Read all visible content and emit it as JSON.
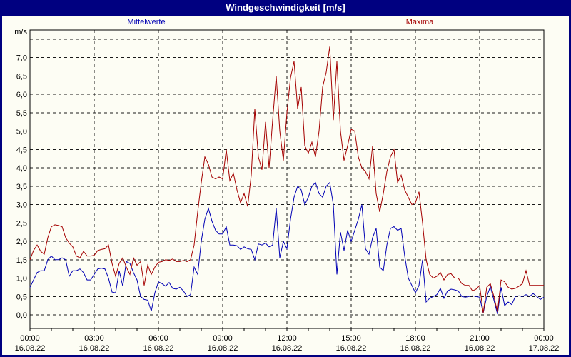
{
  "window": {
    "title": "Windgeschwindigkeit [m/s]"
  },
  "colors": {
    "titlebar_bg": "#000080",
    "titlebar_text": "#ffffff",
    "frame_border": "#000080",
    "surface_bg": "#fdfdf4",
    "grid": "#1a1a1a",
    "axis": "#000000",
    "mean_series": "#0000b4",
    "max_series": "#a40000"
  },
  "chart_data": {
    "type": "line",
    "title": "Windgeschwindigkeit [m/s]",
    "unit_label": "m/s",
    "grid": {
      "dashed": true,
      "color": "#1a1a1a"
    },
    "legend_position": "top",
    "y_axis": {
      "min": 0.0,
      "max": 7.5,
      "grid_step": 0.5,
      "tick_labels": [
        "0,0",
        "0,5",
        "1,0",
        "1,5",
        "2,0",
        "2,5",
        "3,0",
        "3,5",
        "4,0",
        "4,5",
        "5,0",
        "5,5",
        "6,0",
        "6,5",
        "7,0"
      ]
    },
    "x_axis": {
      "hours_span": 24,
      "minor_tick_hours": 1,
      "major_tick_hours": 3,
      "ticks": [
        {
          "time": "00:00",
          "date": "16.08.22"
        },
        {
          "time": "03:00",
          "date": "16.08.22"
        },
        {
          "time": "06:00",
          "date": "16.08.22"
        },
        {
          "time": "09:00",
          "date": "16.08.22"
        },
        {
          "time": "12:00",
          "date": "16.08.22"
        },
        {
          "time": "15:00",
          "date": "16.08.22"
        },
        {
          "time": "18:00",
          "date": "16.08.22"
        },
        {
          "time": "21:00",
          "date": "16.08.22"
        },
        {
          "time": "00:00",
          "date": "17.08.22"
        }
      ]
    },
    "sample_interval_minutes": 10,
    "series": [
      {
        "name": "Mittelwerte",
        "color": "#0000b4",
        "values": [
          0.75,
          0.95,
          1.15,
          1.2,
          1.2,
          1.5,
          1.6,
          1.5,
          1.5,
          1.55,
          1.5,
          1.05,
          1.2,
          1.2,
          1.25,
          1.15,
          0.95,
          0.95,
          1.1,
          1.25,
          1.27,
          1.25,
          1.0,
          0.62,
          0.6,
          1.2,
          0.78,
          1.45,
          1.4,
          1.15,
          0.95,
          0.5,
          0.42,
          0.4,
          0.1,
          0.6,
          0.9,
          0.85,
          0.78,
          0.88,
          0.72,
          0.7,
          0.75,
          0.65,
          0.5,
          0.55,
          1.3,
          1.1,
          2.0,
          2.6,
          2.9,
          2.55,
          2.3,
          2.2,
          2.2,
          2.4,
          1.9,
          1.9,
          1.88,
          1.78,
          1.85,
          1.8,
          1.78,
          1.5,
          1.93,
          1.9,
          1.95,
          1.85,
          1.9,
          2.9,
          1.55,
          2.0,
          1.8,
          2.6,
          3.2,
          3.5,
          3.4,
          3.0,
          3.2,
          3.5,
          3.6,
          3.3,
          3.2,
          3.5,
          3.6,
          3.0,
          1.1,
          2.25,
          1.75,
          2.3,
          2.0,
          2.3,
          2.6,
          3.0,
          1.8,
          1.65,
          2.1,
          2.35,
          1.3,
          1.2,
          1.9,
          2.35,
          2.4,
          2.3,
          2.35,
          1.6,
          1.0,
          0.8,
          0.6,
          0.8,
          1.5,
          0.35,
          0.45,
          0.5,
          0.55,
          0.72,
          0.45,
          0.65,
          0.7,
          0.68,
          0.65,
          0.5,
          0.48,
          0.5,
          0.52,
          0.5,
          0.48,
          0.05,
          0.5,
          0.77,
          0.4,
          0.02,
          0.75,
          0.25,
          0.35,
          0.28,
          0.5,
          0.52,
          0.5,
          0.55,
          0.5,
          0.58,
          0.5,
          0.42,
          0.48
        ]
      },
      {
        "name": "Maxima",
        "color": "#a40000",
        "values": [
          1.5,
          1.75,
          1.9,
          1.73,
          1.65,
          2.1,
          2.4,
          2.45,
          2.43,
          2.4,
          2.1,
          1.95,
          1.85,
          1.6,
          1.55,
          1.73,
          1.6,
          1.6,
          1.62,
          1.75,
          1.78,
          1.8,
          1.9,
          1.4,
          1.05,
          1.4,
          1.55,
          1.3,
          1.1,
          1.55,
          1.35,
          1.45,
          0.8,
          1.35,
          1.1,
          1.3,
          1.43,
          1.45,
          1.5,
          1.48,
          1.52,
          1.45,
          1.45,
          1.48,
          1.45,
          1.5,
          1.9,
          2.8,
          3.6,
          4.3,
          4.1,
          3.75,
          3.7,
          3.75,
          3.7,
          4.5,
          3.65,
          3.85,
          3.4,
          3.05,
          3.3,
          2.95,
          3.8,
          5.6,
          4.3,
          3.95,
          5.25,
          4.0,
          5.3,
          6.5,
          5.0,
          4.2,
          5.5,
          6.45,
          6.9,
          5.6,
          6.2,
          4.6,
          4.4,
          4.7,
          4.3,
          5.0,
          6.2,
          6.6,
          7.3,
          5.3,
          6.9,
          5.0,
          4.2,
          4.6,
          5.05,
          5.0,
          4.3,
          4.0,
          3.9,
          3.7,
          4.6,
          3.3,
          2.8,
          3.3,
          3.9,
          4.3,
          4.5,
          3.6,
          3.8,
          3.4,
          3.2,
          3.0,
          3.05,
          3.35,
          2.5,
          1.5,
          1.1,
          1.0,
          1.05,
          1.15,
          0.95,
          1.1,
          1.12,
          1.0,
          1.0,
          0.85,
          0.8,
          0.8,
          0.65,
          0.7,
          0.8,
          0.05,
          0.75,
          0.85,
          0.5,
          0.08,
          0.95,
          0.9,
          0.75,
          0.7,
          0.72,
          0.78,
          0.85,
          1.2,
          0.8,
          0.8,
          0.8,
          0.8,
          0.8
        ]
      }
    ]
  }
}
